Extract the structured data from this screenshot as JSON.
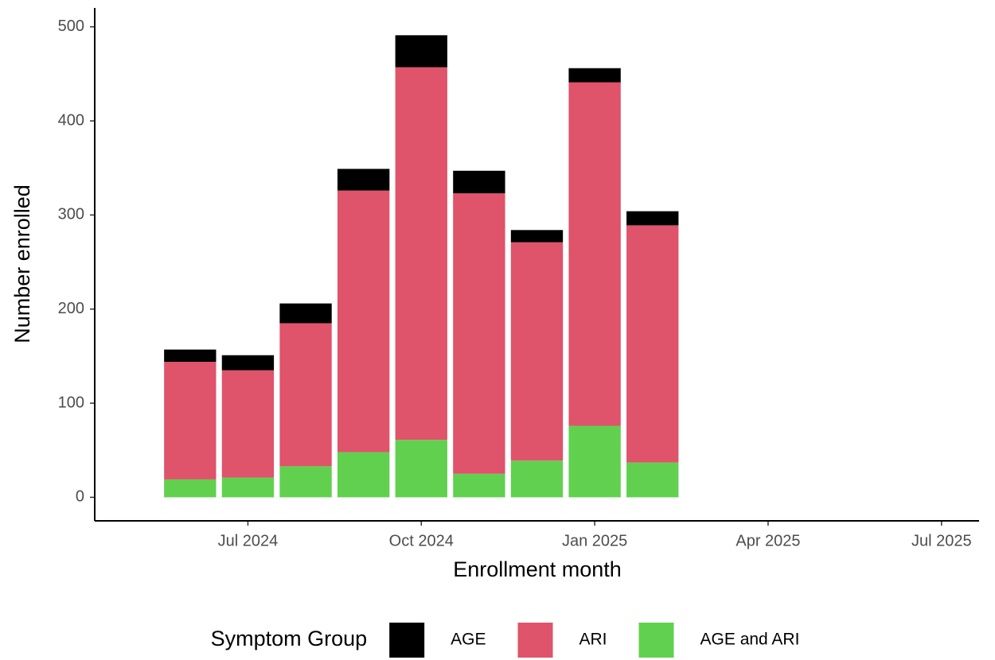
{
  "chart_data": {
    "type": "stacked_bar",
    "x_label": "Enrollment month",
    "y_label": "Number enrolled",
    "legend_title": "Symptom Group",
    "x": [
      "Jun 2024",
      "Jul 2024",
      "Aug 2024",
      "Sep 2024",
      "Oct 2024",
      "Nov 2024",
      "Dec 2024",
      "Jan 2025",
      "Feb 2025"
    ],
    "series": [
      {
        "name": "AGE",
        "color": "#000000",
        "values": [
          13,
          16,
          21,
          23,
          34,
          24,
          13,
          15,
          15
        ]
      },
      {
        "name": "ARI",
        "color": "#DF536B",
        "values": [
          125,
          114,
          152,
          278,
          396,
          298,
          232,
          365,
          252
        ]
      },
      {
        "name": "AGE and ARI",
        "color": "#61D04F",
        "values": [
          19,
          21,
          33,
          48,
          61,
          25,
          39,
          76,
          37
        ]
      }
    ],
    "ylim": [
      -25,
      520
    ],
    "yticks": [
      0,
      100,
      200,
      300,
      400,
      500
    ],
    "xticks": [
      "Jul 2024",
      "Oct 2024",
      "Jan 2025",
      "Apr 2025",
      "Jul 2025"
    ],
    "legend_position": "bottom"
  }
}
